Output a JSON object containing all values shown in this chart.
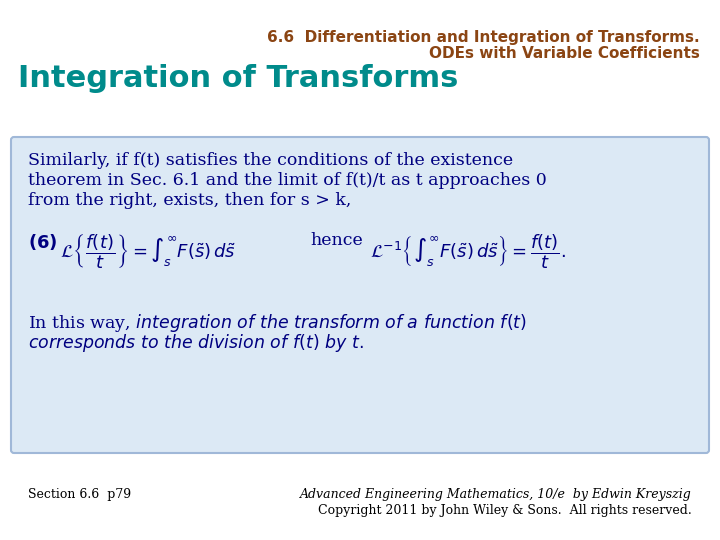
{
  "bg_color": "#ffffff",
  "title_line1": "6.6  Differentiation and Integration of Transforms.",
  "title_line2": "ODEs with Variable Coefficients",
  "title_color": "#8B4513",
  "subtitle": "Integration of Transforms",
  "subtitle_color": "#008B8B",
  "box_bg": "#dce9f5",
  "box_border": "#a0b8d8",
  "text_color": "#000080",
  "para1_line1": "Similarly, if f(t) satisfies the conditions of the existence",
  "para1_line2": "theorem in Sec. 6.1 and the limit of f(t)/t as t approaches 0",
  "para1_line3": "from the right, exists, then for s > k,",
  "eq_label": "(6)",
  "para2_line1": "In this way, integration of the transform of a function f(t)",
  "para2_line2": "corresponds to the division of f(t) by t.",
  "footer_left": "Section 6.6  p79",
  "footer_right_line1": "Advanced Engineering Mathematics, 10/e  by Edwin Kreyszig",
  "footer_right_line2": "Copyright 2011 by John Wiley & Sons.  All rights reserved.",
  "footer_color": "#000000"
}
